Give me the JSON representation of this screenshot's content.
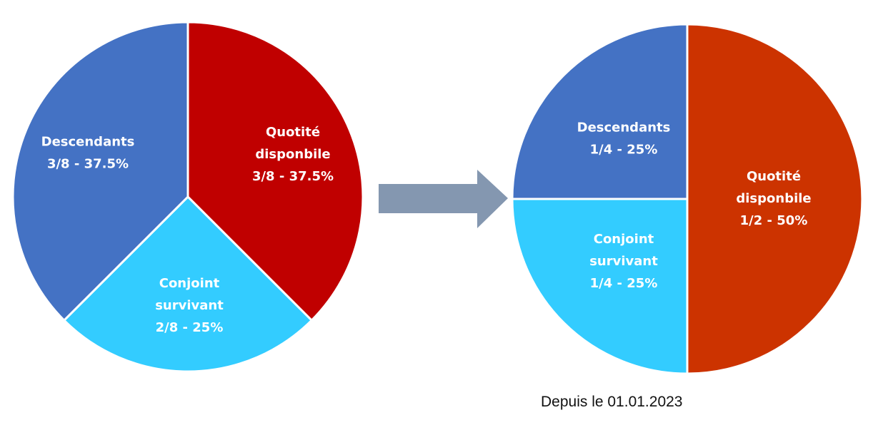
{
  "chart_data": [
    {
      "type": "pie",
      "title": "",
      "slices": [
        {
          "label_lines": [
            "Quotité",
            "disponbile",
            "3/8 - 37.5%"
          ],
          "value": 37.5,
          "color": "#C00000"
        },
        {
          "label_lines": [
            "Conjoint",
            "survivant",
            "2/8 - 25%"
          ],
          "value": 25,
          "color": "#33CCFF"
        },
        {
          "label_lines": [
            "Descendants",
            "3/8 - 37.5%"
          ],
          "value": 37.5,
          "color": "#4472C4"
        }
      ]
    },
    {
      "type": "pie",
      "title": "",
      "slices": [
        {
          "label_lines": [
            "Quotité",
            "disponbile",
            "1/2 - 50%"
          ],
          "value": 50,
          "color": "#CC3300"
        },
        {
          "label_lines": [
            "Conjoint",
            "survivant",
            "1/4 - 25%"
          ],
          "value": 25,
          "color": "#33CCFF"
        },
        {
          "label_lines": [
            "Descendants",
            "1/4 - 25%"
          ],
          "value": 25,
          "color": "#4472C4"
        }
      ]
    }
  ],
  "arrow_color": "#8497B0",
  "footnote": "Depuis le 01.01.2023"
}
